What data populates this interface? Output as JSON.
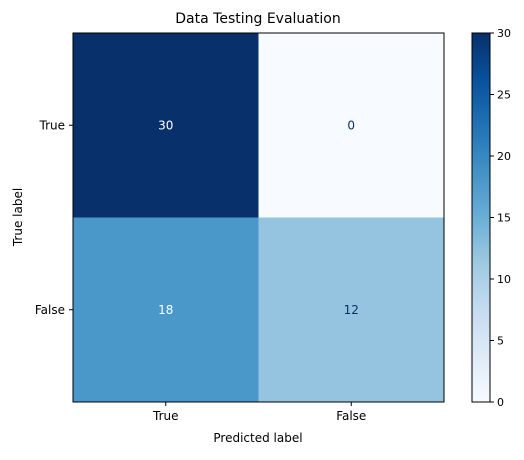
{
  "chart_data": {
    "type": "heatmap",
    "title": "Data Testing Evaluation",
    "xlabel": "Predicted label",
    "ylabel": "True label",
    "x_categories": [
      "True",
      "False"
    ],
    "y_categories": [
      "True",
      "False"
    ],
    "values": [
      [
        30,
        0
      ],
      [
        18,
        12
      ]
    ],
    "colormap": "Blues",
    "colorbar": {
      "min": 0,
      "max": 30,
      "ticks": [
        0,
        5,
        10,
        15,
        20,
        25,
        30
      ]
    },
    "grid": false
  },
  "colors": {
    "cell_30": "#08306b",
    "cell_0": "#f7fbff",
    "cell_18": "#4a98c9",
    "cell_12": "#94c4df",
    "text_light": "#ffffff",
    "text_dark": "#08306b"
  }
}
